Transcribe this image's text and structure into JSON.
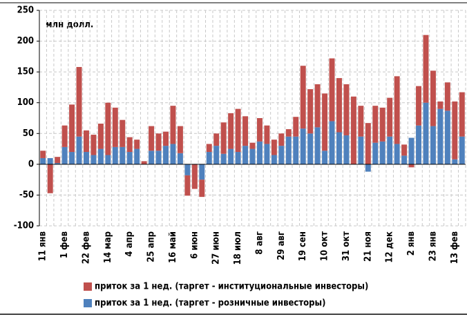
{
  "chart_data": {
    "type": "stacked_bar",
    "unit_label": "млн долл.",
    "categories": [
      "11 янв",
      null,
      null,
      "1 фев",
      null,
      null,
      "22 фев",
      null,
      null,
      "14 мар",
      null,
      null,
      "4 апр",
      null,
      null,
      "25 апр",
      null,
      null,
      "16 май",
      null,
      null,
      "6 июн",
      null,
      null,
      "27 июн",
      null,
      null,
      "18 июл",
      null,
      null,
      "8 авг",
      null,
      null,
      "29 авг",
      null,
      null,
      "19 сен",
      null,
      null,
      "10 окт",
      null,
      null,
      "31 окт",
      null,
      null,
      "21 ноя",
      null,
      null,
      "12 дек",
      null,
      null,
      "2 янв",
      null,
      null,
      "23 янв",
      null,
      null,
      "13 фев",
      null
    ],
    "series": [
      {
        "name": "приток за 1 нед. (таргет - розничные инвесторы)",
        "color": "#4f81bd",
        "values": [
          10,
          10,
          2,
          28,
          20,
          45,
          20,
          15,
          25,
          15,
          28,
          28,
          20,
          25,
          0,
          22,
          22,
          30,
          33,
          18,
          -18,
          0,
          -25,
          20,
          30,
          17,
          25,
          20,
          30,
          25,
          37,
          33,
          15,
          30,
          45,
          45,
          58,
          50,
          60,
          22,
          70,
          52,
          47,
          0,
          45,
          -12,
          35,
          37,
          45,
          33,
          14,
          43,
          63,
          100,
          62,
          90,
          87,
          8,
          45
        ]
      },
      {
        "name": "приток за 1 нед. (таргет - институциональные  инвесторы)",
        "color": "#c0504d",
        "values": [
          12,
          -47,
          10,
          35,
          77,
          113,
          35,
          33,
          41,
          85,
          64,
          44,
          24,
          15,
          5,
          40,
          28,
          23,
          62,
          44,
          -33,
          -40,
          -28,
          13,
          20,
          51,
          58,
          70,
          48,
          10,
          38,
          30,
          25,
          20,
          12,
          32,
          102,
          72,
          70,
          93,
          102,
          88,
          83,
          110,
          50,
          67,
          60,
          55,
          63,
          110,
          18,
          -5,
          64,
          110,
          90,
          12,
          46,
          94,
          72
        ]
      }
    ],
    "ylim": [
      -100,
      250
    ],
    "yticks": [
      -100,
      -50,
      0,
      50,
      100,
      150,
      200,
      250
    ],
    "grid": true
  }
}
